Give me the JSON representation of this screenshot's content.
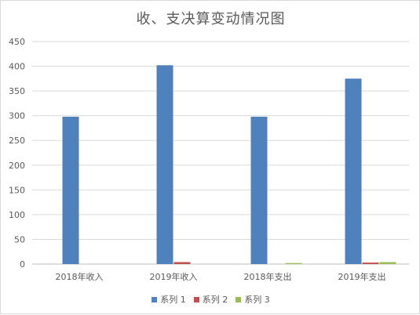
{
  "chart_data": {
    "type": "bar",
    "title": "收、支决算变动情况图",
    "categories": [
      "2018年收入",
      "2019年收入",
      "2018年支出",
      "2019年支出"
    ],
    "series": [
      {
        "name": "系列 1",
        "color": "#4f81bd",
        "values": [
          298,
          402,
          298,
          375
        ]
      },
      {
        "name": "系列 2",
        "color": "#c0504d",
        "values": [
          0,
          4,
          0,
          3
        ]
      },
      {
        "name": "系列 3",
        "color": "#9bbb59",
        "values": [
          0,
          0,
          2,
          4
        ]
      }
    ],
    "ylim": [
      0,
      450
    ],
    "yticks": [
      0,
      50,
      100,
      150,
      200,
      250,
      300,
      350,
      400,
      450
    ],
    "grid": true,
    "legend_position": "bottom"
  }
}
